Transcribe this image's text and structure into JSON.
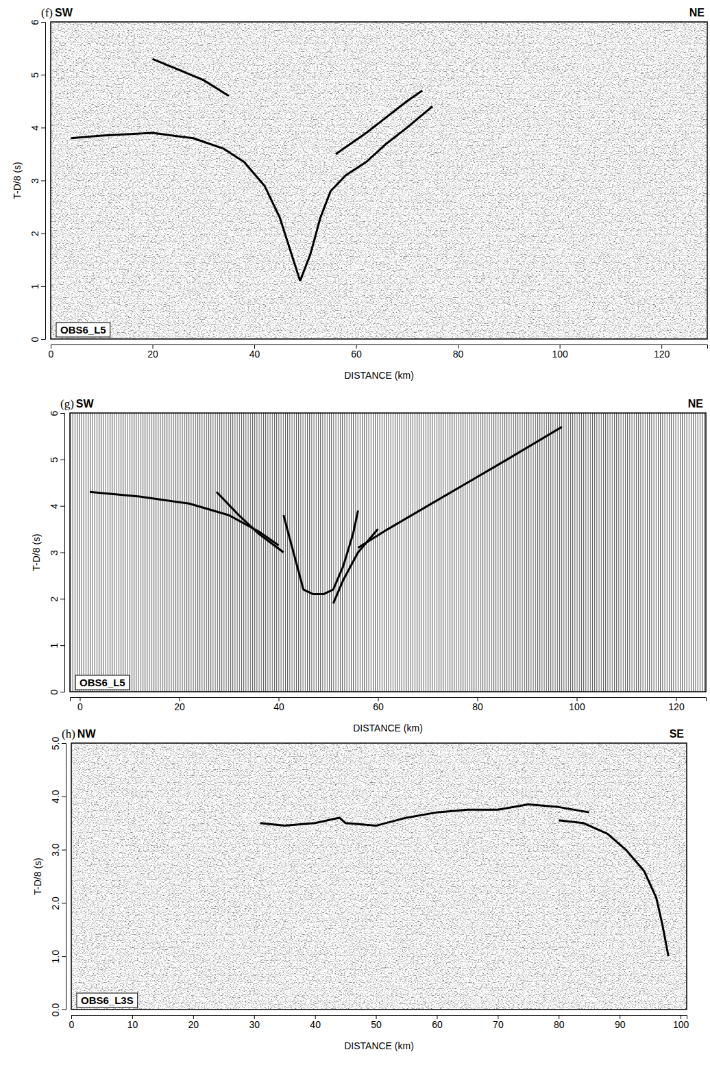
{
  "chart_data": [
    {
      "type": "line",
      "title": "(f)",
      "annotations": [
        "SW",
        "NE",
        "OBS6_L5"
      ],
      "x_label": "DISTANCE (km)",
      "y_label": "T-D/8 (s)",
      "xlim": [
        0,
        129
      ],
      "ylim": [
        0,
        6
      ],
      "xticks": [
        0,
        20,
        40,
        60,
        80,
        100,
        120
      ],
      "yticks": [
        0,
        1,
        2,
        3,
        4,
        5,
        6
      ],
      "color": "#000000",
      "series": [
        {
          "x": [
            4,
            10,
            20,
            28,
            34,
            38,
            42,
            45,
            47,
            49
          ],
          "values": [
            3.8,
            3.85,
            3.9,
            3.8,
            3.6,
            3.35,
            2.9,
            2.3,
            1.7,
            1.1
          ]
        },
        {
          "x": [
            49,
            51,
            53,
            55,
            58,
            62,
            66,
            70,
            75
          ],
          "values": [
            1.1,
            1.6,
            2.3,
            2.8,
            3.1,
            3.35,
            3.7,
            4.0,
            4.4
          ]
        },
        {
          "x": [
            56,
            62,
            66,
            70,
            73
          ],
          "values": [
            3.5,
            3.9,
            4.2,
            4.5,
            4.7
          ]
        },
        {
          "x": [
            20,
            25,
            30,
            35
          ],
          "values": [
            5.3,
            5.1,
            4.9,
            4.6
          ]
        }
      ]
    },
    {
      "type": "line",
      "title": "(g)",
      "annotations": [
        "SW",
        "NE",
        "OBS6_L5"
      ],
      "x_label": "DISTANCE (km)",
      "y_label": "T-D/8 (s)",
      "xlim": [
        -2,
        126
      ],
      "ylim": [
        0,
        6
      ],
      "xticks": [
        0,
        20,
        40,
        60,
        80,
        100,
        120
      ],
      "yticks": [
        0,
        1,
        2,
        3,
        4,
        5,
        6
      ],
      "color": "#000000",
      "series": [
        {
          "x": [
            2,
            12,
            22,
            30,
            36,
            40
          ],
          "values": [
            4.3,
            4.2,
            4.05,
            3.8,
            3.45,
            3.15
          ]
        },
        {
          "x": [
            27.5,
            32,
            36,
            41
          ],
          "values": [
            4.3,
            3.8,
            3.4,
            3.0
          ]
        },
        {
          "x": [
            41,
            43,
            45,
            47,
            49,
            51,
            53,
            55,
            56
          ],
          "values": [
            3.8,
            3.0,
            2.2,
            2.1,
            2.1,
            2.2,
            2.7,
            3.4,
            3.9
          ]
        },
        {
          "x": [
            51,
            53,
            56,
            60
          ],
          "values": [
            1.9,
            2.4,
            3.0,
            3.5
          ]
        },
        {
          "x": [
            56,
            62,
            70,
            78,
            86,
            97
          ],
          "values": [
            3.1,
            3.5,
            4.0,
            4.5,
            5.0,
            5.7
          ]
        }
      ]
    },
    {
      "type": "line",
      "title": "(h)",
      "annotations": [
        "NW",
        "SE",
        "OBS6_L3S"
      ],
      "x_label": "DISTANCE (km)",
      "y_label": "T-D/8 (s)",
      "xlim": [
        0,
        101
      ],
      "ylim": [
        0,
        5
      ],
      "xticks": [
        0,
        10,
        20,
        30,
        40,
        50,
        60,
        70,
        80,
        90,
        100
      ],
      "yticks": [
        {
          "value": 0,
          "label": "0.0"
        },
        {
          "value": 1,
          "label": "1.0"
        },
        {
          "value": 2,
          "label": "2.0"
        },
        {
          "value": 3,
          "label": "3.0"
        },
        {
          "value": 4,
          "label": "4.0"
        },
        {
          "value": 5,
          "label": "5.0"
        }
      ],
      "color": "#000000",
      "series": [
        {
          "x": [
            31,
            35,
            40,
            44,
            45,
            50,
            55,
            60,
            65,
            70,
            75,
            80,
            85
          ],
          "values": [
            3.5,
            3.45,
            3.5,
            3.6,
            3.5,
            3.45,
            3.6,
            3.7,
            3.75,
            3.75,
            3.85,
            3.8,
            3.7
          ]
        },
        {
          "x": [
            80,
            84,
            88,
            91,
            94,
            96,
            97,
            98
          ],
          "values": [
            3.55,
            3.5,
            3.3,
            3.0,
            2.6,
            2.1,
            1.6,
            1.0
          ]
        }
      ]
    }
  ]
}
